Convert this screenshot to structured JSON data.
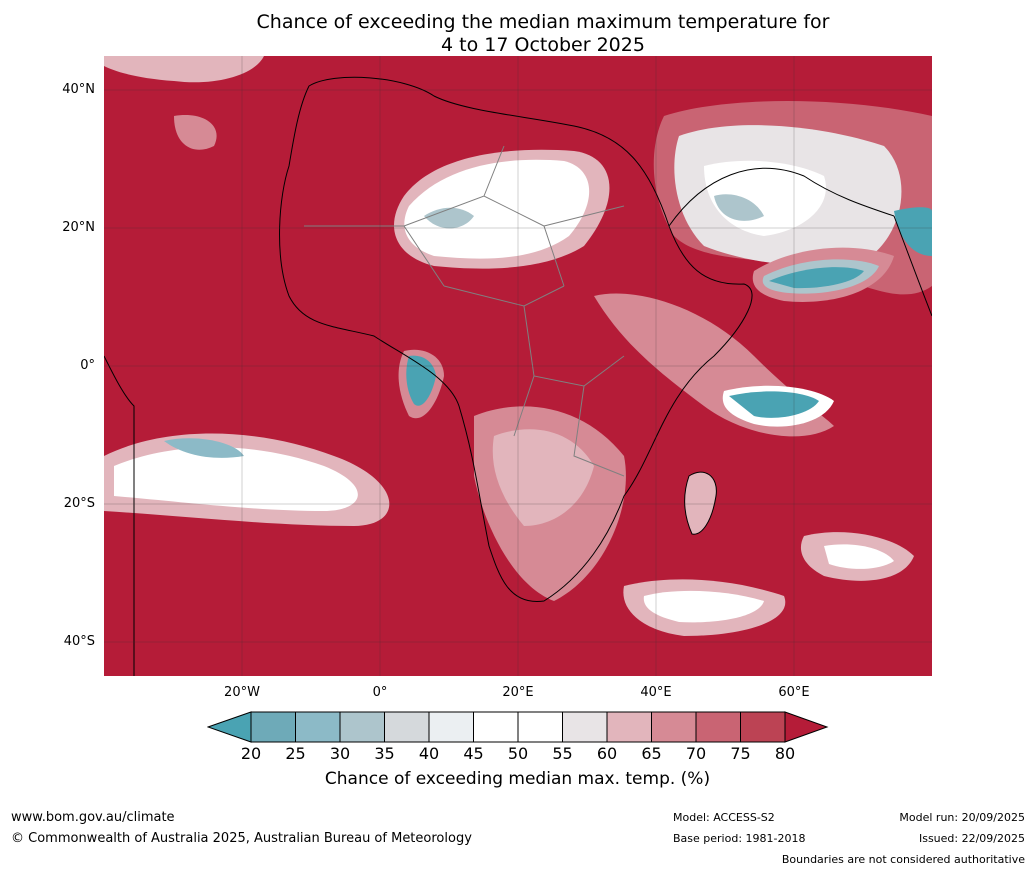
{
  "title": {
    "line1": "Chance of exceeding the median maximum temperature for",
    "line2": "4 to 17 October 2025"
  },
  "map": {
    "lat_labels": [
      "40°N",
      "20°N",
      "0°",
      "20°S",
      "40°S"
    ],
    "lon_labels": [
      "20°W",
      "0°",
      "20°E",
      "40°E",
      "60°E"
    ]
  },
  "colorbar": {
    "ticks": [
      "20",
      "25",
      "30",
      "35",
      "40",
      "45",
      "50",
      "55",
      "60",
      "65",
      "70",
      "75",
      "80"
    ],
    "colors": [
      "#4aa3b3",
      "#6eaab8",
      "#8cbac7",
      "#adc5cc",
      "#d5d9dc",
      "#ebeff2",
      "#ffffff",
      "#ffffff",
      "#e8e4e6",
      "#e2b5bc",
      "#d68a95",
      "#c96473",
      "#bc4354",
      "#b51c38"
    ],
    "label": "Chance of exceeding median max. temp. (%)"
  },
  "footer": {
    "website": "www.bom.gov.au/climate",
    "copyright": "© Commonwealth of Australia 2025, Australian Bureau of Meteorology",
    "model": "Model: ACCESS-S2",
    "base_period": "Base period: 1981-2018",
    "model_run": "Model run: 20/09/2025",
    "issued": "Issued: 22/09/2025",
    "disclaimer": "Boundaries are not considered authoritative"
  }
}
